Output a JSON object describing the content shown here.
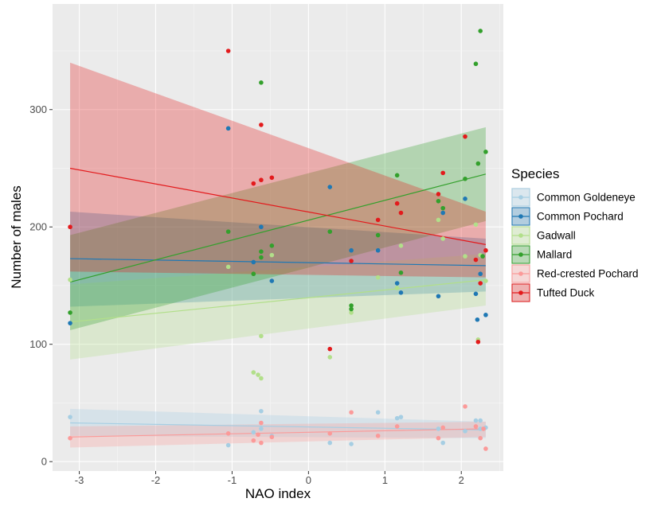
{
  "chart_data": {
    "type": "scatter",
    "xlabel": "NAO index",
    "ylabel": "Number of males",
    "xlim": [
      -3.35,
      2.55
    ],
    "ylim": [
      -8,
      390
    ],
    "x_ticks": [
      -3,
      -2,
      -1,
      0,
      1,
      2
    ],
    "y_ticks": [
      0,
      100,
      200,
      300
    ],
    "x_tick_labels": [
      "-3",
      "-2",
      "-1",
      "0",
      "1",
      "2"
    ],
    "y_tick_labels": [
      "0",
      "100",
      "200",
      "300"
    ],
    "grid": true,
    "legend_title": "Species",
    "legend_position": "right",
    "series": [
      {
        "name": "Common Goldeneye",
        "color": "#a6cee3",
        "trend": [
          [
            -3.12,
            33
          ],
          [
            2.32,
            27
          ]
        ],
        "band_lower": [
          [
            -3.12,
            22
          ],
          [
            2.32,
            20
          ]
        ],
        "band_upper": [
          [
            -3.12,
            45
          ],
          [
            2.32,
            34
          ]
        ],
        "points": [
          [
            -3.12,
            38
          ],
          [
            -1.05,
            14
          ],
          [
            -0.72,
            25
          ],
          [
            -0.62,
            43
          ],
          [
            -0.62,
            28
          ],
          [
            -0.48,
            22
          ],
          [
            0.28,
            16
          ],
          [
            0.56,
            15
          ],
          [
            0.91,
            42
          ],
          [
            1.16,
            37
          ],
          [
            1.21,
            38
          ],
          [
            1.7,
            28
          ],
          [
            1.76,
            16
          ],
          [
            2.19,
            35
          ],
          [
            2.25,
            35
          ],
          [
            2.32,
            29
          ],
          [
            2.25,
            28
          ],
          [
            2.05,
            26
          ]
        ]
      },
      {
        "name": "Common Pochard",
        "color": "#1f78b4",
        "trend": [
          [
            -3.12,
            173
          ],
          [
            2.32,
            167
          ]
        ],
        "band_lower": [
          [
            -3.12,
            132
          ],
          [
            2.32,
            145
          ]
        ],
        "band_upper": [
          [
            -3.12,
            213
          ],
          [
            2.32,
            190
          ]
        ],
        "points": [
          [
            -3.12,
            118
          ],
          [
            -1.05,
            284
          ],
          [
            -0.72,
            170
          ],
          [
            -0.62,
            200
          ],
          [
            -0.48,
            154
          ],
          [
            0.28,
            234
          ],
          [
            0.56,
            180
          ],
          [
            0.91,
            180
          ],
          [
            1.16,
            152
          ],
          [
            1.21,
            144
          ],
          [
            1.7,
            141
          ],
          [
            1.76,
            212
          ],
          [
            2.05,
            224
          ],
          [
            2.19,
            143
          ],
          [
            2.21,
            121
          ],
          [
            2.25,
            160
          ],
          [
            2.32,
            125
          ]
        ]
      },
      {
        "name": "Gadwall",
        "color": "#b2df8a",
        "trend": [
          [
            -3.12,
            119
          ],
          [
            2.32,
            155
          ]
        ],
        "band_lower": [
          [
            -3.12,
            87
          ],
          [
            2.32,
            133
          ]
        ],
        "band_upper": [
          [
            -3.12,
            151
          ],
          [
            2.32,
            177
          ]
        ],
        "points": [
          [
            -3.12,
            155
          ],
          [
            -1.05,
            166
          ],
          [
            -0.72,
            76
          ],
          [
            -0.66,
            74
          ],
          [
            -0.62,
            71
          ],
          [
            -0.62,
            107
          ],
          [
            -0.48,
            176
          ],
          [
            0.28,
            89
          ],
          [
            0.56,
            127
          ],
          [
            0.91,
            157
          ],
          [
            1.16,
            148
          ],
          [
            1.21,
            184
          ],
          [
            1.7,
            206
          ],
          [
            1.76,
            190
          ],
          [
            2.05,
            175
          ],
          [
            2.19,
            202
          ],
          [
            2.22,
            104
          ],
          [
            2.25,
            176
          ],
          [
            2.32,
            154
          ]
        ]
      },
      {
        "name": "Mallard",
        "color": "#33a02c",
        "trend": [
          [
            -3.12,
            153
          ],
          [
            2.32,
            245
          ]
        ],
        "band_lower": [
          [
            -3.12,
            112
          ],
          [
            2.32,
            205
          ]
        ],
        "band_upper": [
          [
            -3.12,
            193
          ],
          [
            2.32,
            285
          ]
        ],
        "points": [
          [
            -3.12,
            127
          ],
          [
            -1.05,
            196
          ],
          [
            -0.72,
            160
          ],
          [
            -0.62,
            174
          ],
          [
            -0.62,
            179
          ],
          [
            -0.62,
            323
          ],
          [
            -0.48,
            184
          ],
          [
            0.28,
            196
          ],
          [
            0.56,
            133
          ],
          [
            0.56,
            130
          ],
          [
            0.91,
            193
          ],
          [
            1.16,
            244
          ],
          [
            1.21,
            161
          ],
          [
            1.7,
            222
          ],
          [
            1.76,
            216
          ],
          [
            2.05,
            241
          ],
          [
            2.19,
            339
          ],
          [
            2.22,
            254
          ],
          [
            2.25,
            367
          ],
          [
            2.32,
            264
          ],
          [
            2.28,
            175
          ]
        ]
      },
      {
        "name": "Red-crested Pochard",
        "color": "#fb9a99",
        "trend": [
          [
            -3.12,
            21
          ],
          [
            2.32,
            28
          ]
        ],
        "band_lower": [
          [
            -3.12,
            12
          ],
          [
            2.32,
            21
          ]
        ],
        "band_upper": [
          [
            -3.12,
            30
          ],
          [
            2.32,
            34
          ]
        ],
        "points": [
          [
            -3.12,
            20
          ],
          [
            -1.05,
            24
          ],
          [
            -0.72,
            18
          ],
          [
            -0.66,
            23
          ],
          [
            -0.62,
            33
          ],
          [
            -0.62,
            16
          ],
          [
            -0.48,
            21
          ],
          [
            0.28,
            24
          ],
          [
            0.56,
            42
          ],
          [
            0.91,
            22
          ],
          [
            1.16,
            30
          ],
          [
            1.7,
            20
          ],
          [
            1.76,
            29
          ],
          [
            2.05,
            47
          ],
          [
            2.19,
            30
          ],
          [
            2.25,
            20
          ],
          [
            2.29,
            28
          ],
          [
            2.32,
            11
          ]
        ]
      },
      {
        "name": "Tufted Duck",
        "color": "#e31a1c",
        "trend": [
          [
            -3.12,
            250
          ],
          [
            2.32,
            185
          ]
        ],
        "band_lower": [
          [
            -3.12,
            162
          ],
          [
            2.32,
            157
          ]
        ],
        "band_upper": [
          [
            -3.12,
            340
          ],
          [
            2.32,
            213
          ]
        ],
        "points": [
          [
            -3.12,
            200
          ],
          [
            -1.05,
            350
          ],
          [
            -0.72,
            237
          ],
          [
            -0.62,
            240
          ],
          [
            -0.62,
            287
          ],
          [
            -0.48,
            242
          ],
          [
            0.28,
            96
          ],
          [
            0.56,
            171
          ],
          [
            0.91,
            206
          ],
          [
            1.16,
            220
          ],
          [
            1.21,
            212
          ],
          [
            1.7,
            228
          ],
          [
            1.76,
            246
          ],
          [
            2.05,
            277
          ],
          [
            2.19,
            172
          ],
          [
            2.22,
            102
          ],
          [
            2.25,
            152
          ],
          [
            2.32,
            180
          ]
        ]
      }
    ]
  }
}
